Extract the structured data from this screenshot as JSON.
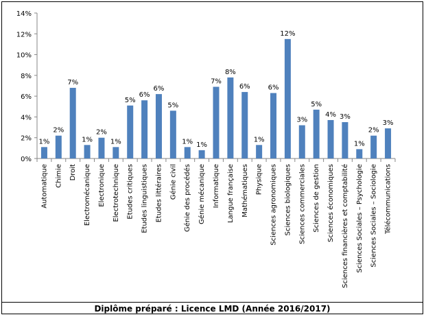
{
  "caption": "Diplôme préparé : Licence LMD (Année 2016/2017)",
  "chart_data": {
    "type": "bar",
    "title": "",
    "xlabel": "",
    "ylabel": "",
    "ylim": [
      0,
      14
    ],
    "ytick_values": [
      0,
      2,
      4,
      6,
      8,
      10,
      12,
      14
    ],
    "ytick_labels": [
      "0%",
      "2%",
      "4%",
      "6%",
      "8%",
      "10%",
      "12%",
      "14%"
    ],
    "grid": false,
    "legend": "none",
    "bar_color": "#4F81BD",
    "categories": [
      "Automatique",
      "Chimie",
      "Droit",
      "Electromécanique",
      "Electronique",
      "Electrotechnique",
      "Etudes critiques",
      "Etudes linguistiques",
      "Etudes littéraires",
      "Génie civil",
      "Génie des procédés",
      "Génie mécanique",
      "Informatique",
      "Langue française",
      "Mathématiques",
      "Physique",
      "Sciences agronomiques",
      "Sciences biologiques",
      "Sciences commerciales",
      "Sciences de gestion",
      "Sciences économiques",
      "Sciences financières et comptabilité",
      "Sciences Sociales – Psychologie",
      "Sciences Sociales – Sociologie",
      "Télécommunications"
    ],
    "values": [
      1.1,
      2.2,
      6.8,
      1.3,
      2.0,
      1.1,
      5.1,
      5.6,
      6.2,
      4.6,
      1.1,
      0.8,
      6.9,
      7.8,
      6.4,
      1.3,
      6.3,
      11.5,
      3.2,
      4.7,
      3.7,
      3.5,
      0.9,
      2.2,
      2.9
    ],
    "data_labels": [
      "1%",
      "2%",
      "7%",
      "1%",
      "2%",
      "1%",
      "5%",
      "6%",
      "6%",
      "5%",
      "1%",
      "1%",
      "7%",
      "8%",
      "6%",
      "1%",
      "6%",
      "12%",
      "3%",
      "5%",
      "4%",
      "3%",
      "1%",
      "2%",
      "3%"
    ]
  }
}
